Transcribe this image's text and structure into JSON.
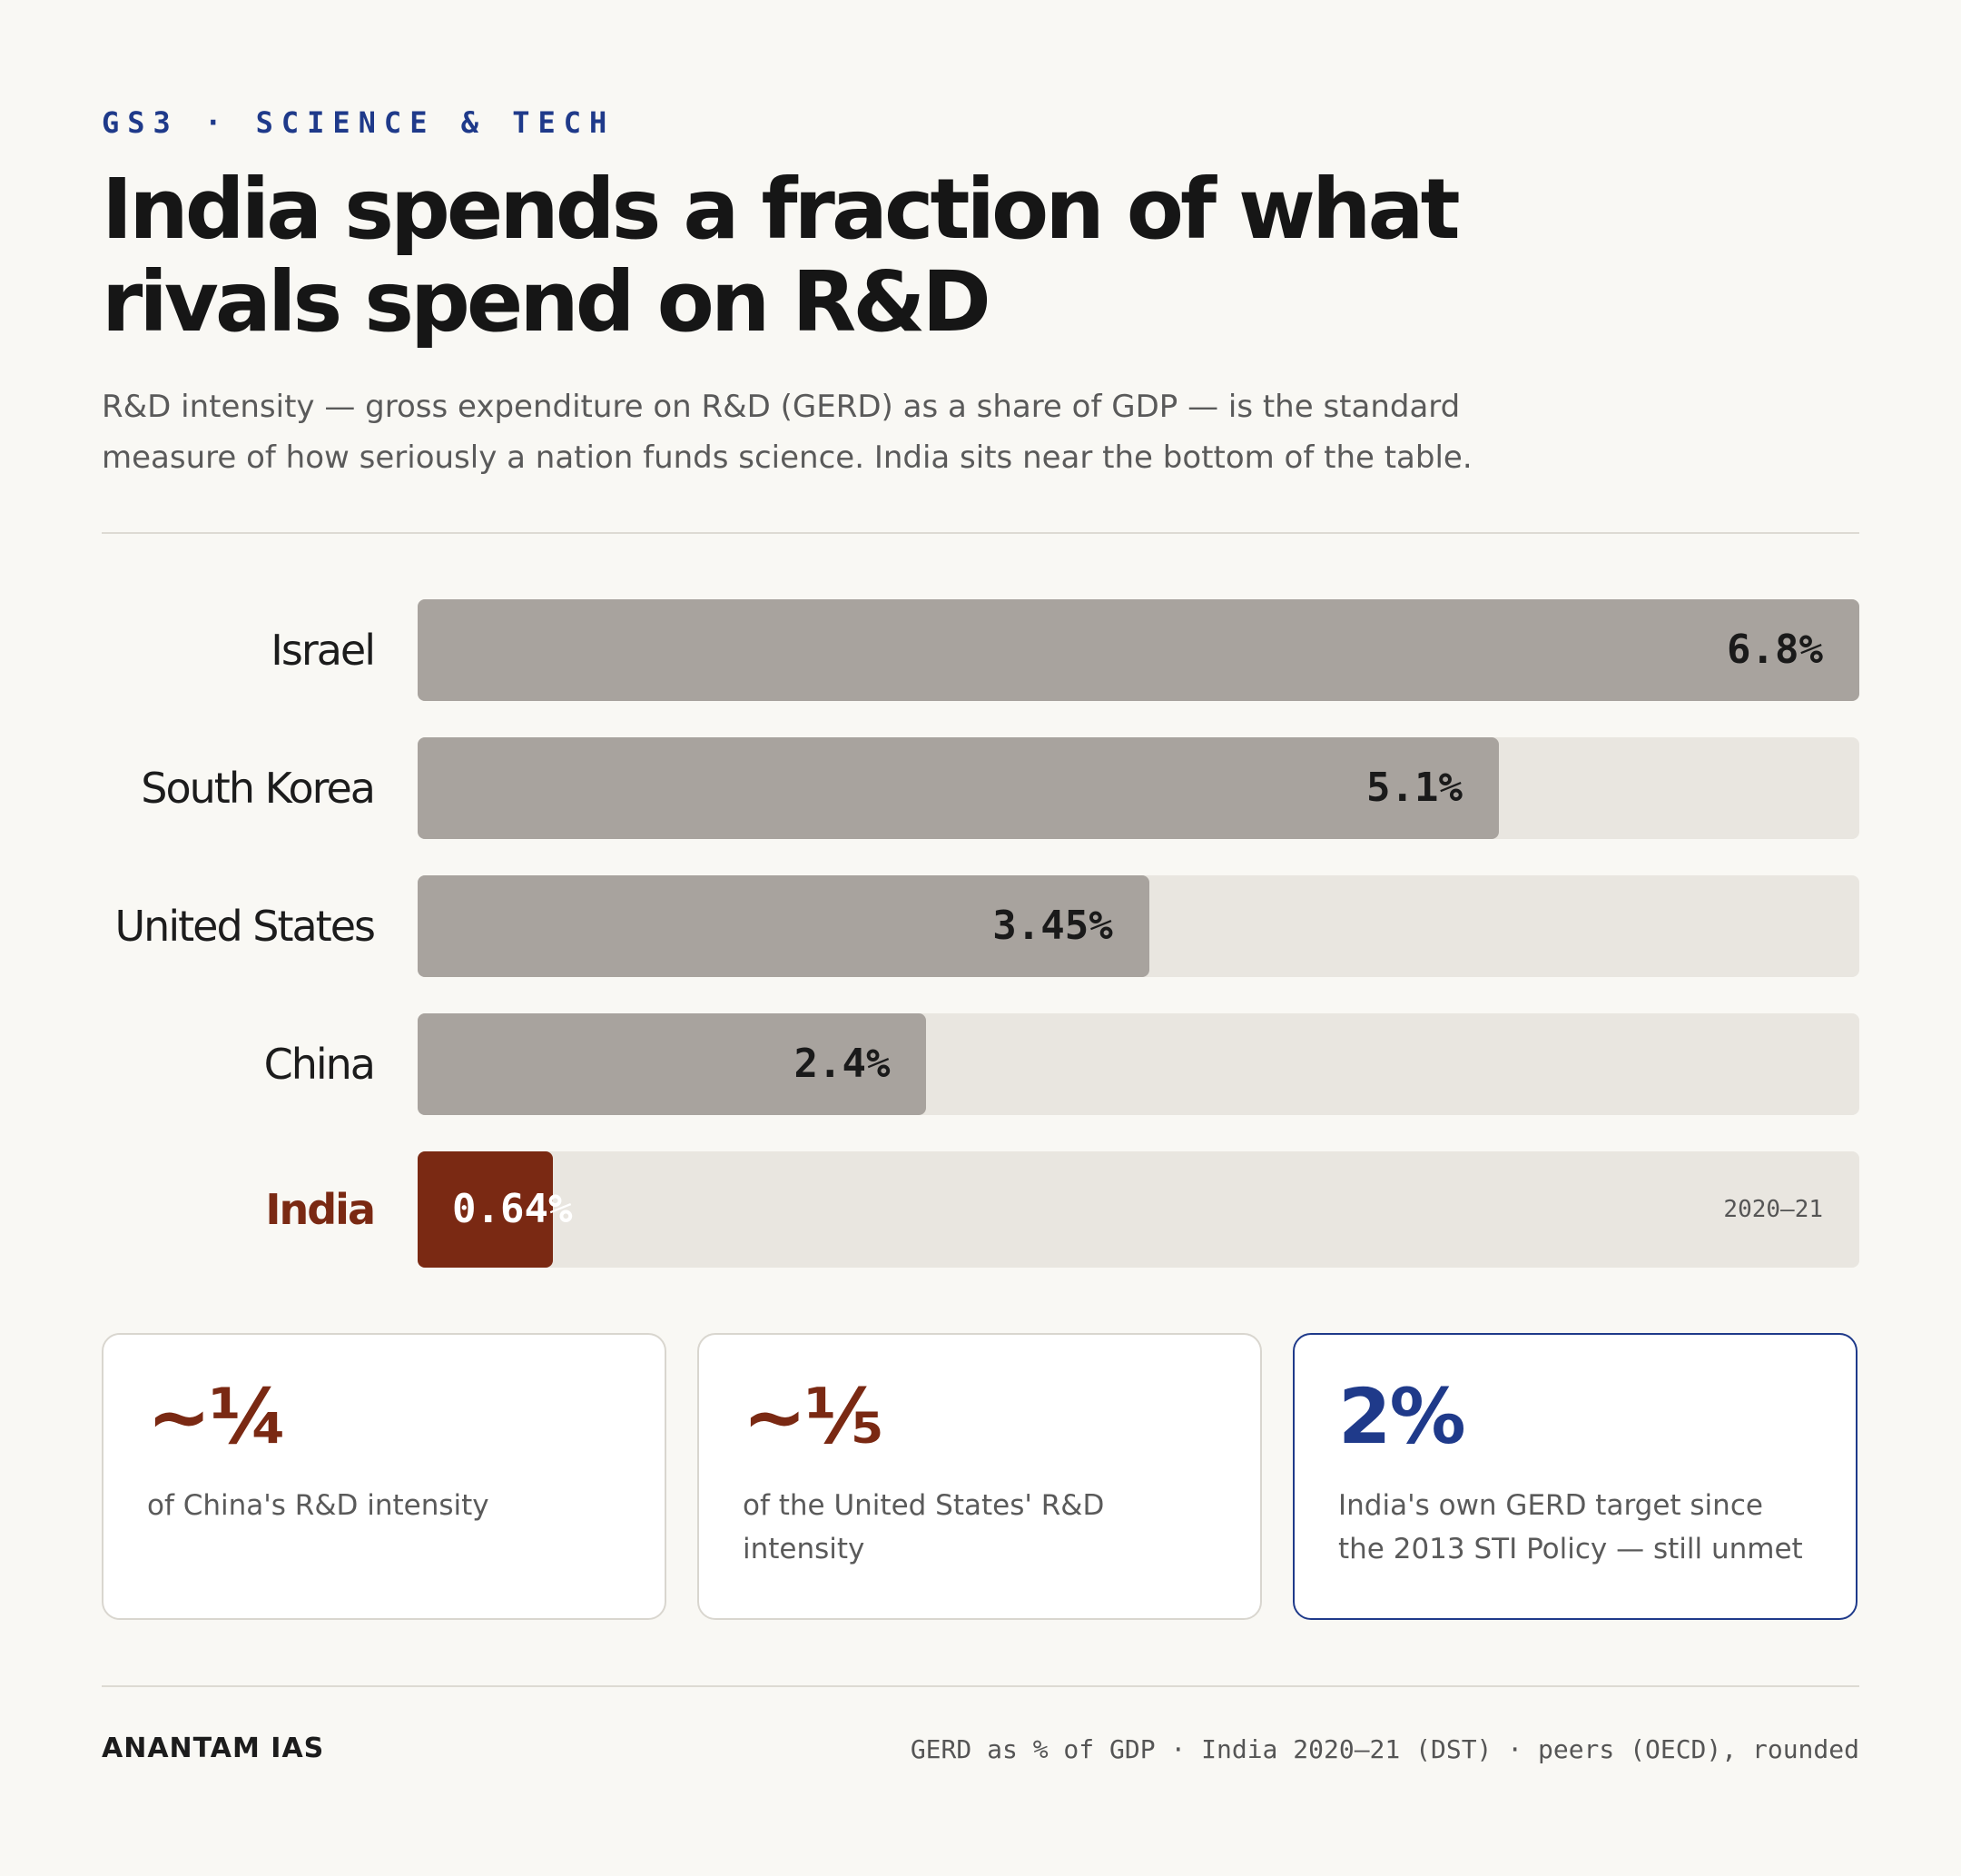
{
  "header": {
    "eyebrow": "GS3 · SCIENCE & TECH",
    "title": "India spends a fraction of what rivals spend on R&D",
    "subtitle": "R&D intensity — gross expenditure on R&D (GERD) as a share of GDP — is the standard measure of how seriously a nation funds science. India sits near the bottom of the table."
  },
  "chart_data": {
    "type": "bar",
    "orientation": "horizontal",
    "categories": [
      "Israel",
      "South Korea",
      "United States",
      "China",
      "India"
    ],
    "values": [
      6.8,
      5.1,
      3.45,
      2.4,
      0.64
    ],
    "value_labels": [
      "6.8%",
      "5.1%",
      "3.45%",
      "2.4%",
      "0.64%"
    ],
    "highlight": "India",
    "highlight_note": "2020–21",
    "xlim": [
      0,
      6.8
    ],
    "grid": false,
    "colors": {
      "bar": "#a8a39e",
      "highlight": "#7a2913",
      "track": "#e9e6e0"
    }
  },
  "cards": [
    {
      "figure": "~¼",
      "text": "of China's R&D intensity"
    },
    {
      "figure": "~⅕",
      "text": "of the United States' R&D intensity"
    },
    {
      "figure": "2%",
      "text": "India's own GERD target since the 2013 STI Policy — still unmet"
    }
  ],
  "footer": {
    "brand": "ANANTAM IAS",
    "source": "GERD as % of GDP · India 2020–21 (DST) · peers (OECD), rounded"
  },
  "colors": {
    "accent_blue": "#1f3a8a",
    "accent_rust": "#7a2913",
    "background": "#f9f8f4"
  }
}
